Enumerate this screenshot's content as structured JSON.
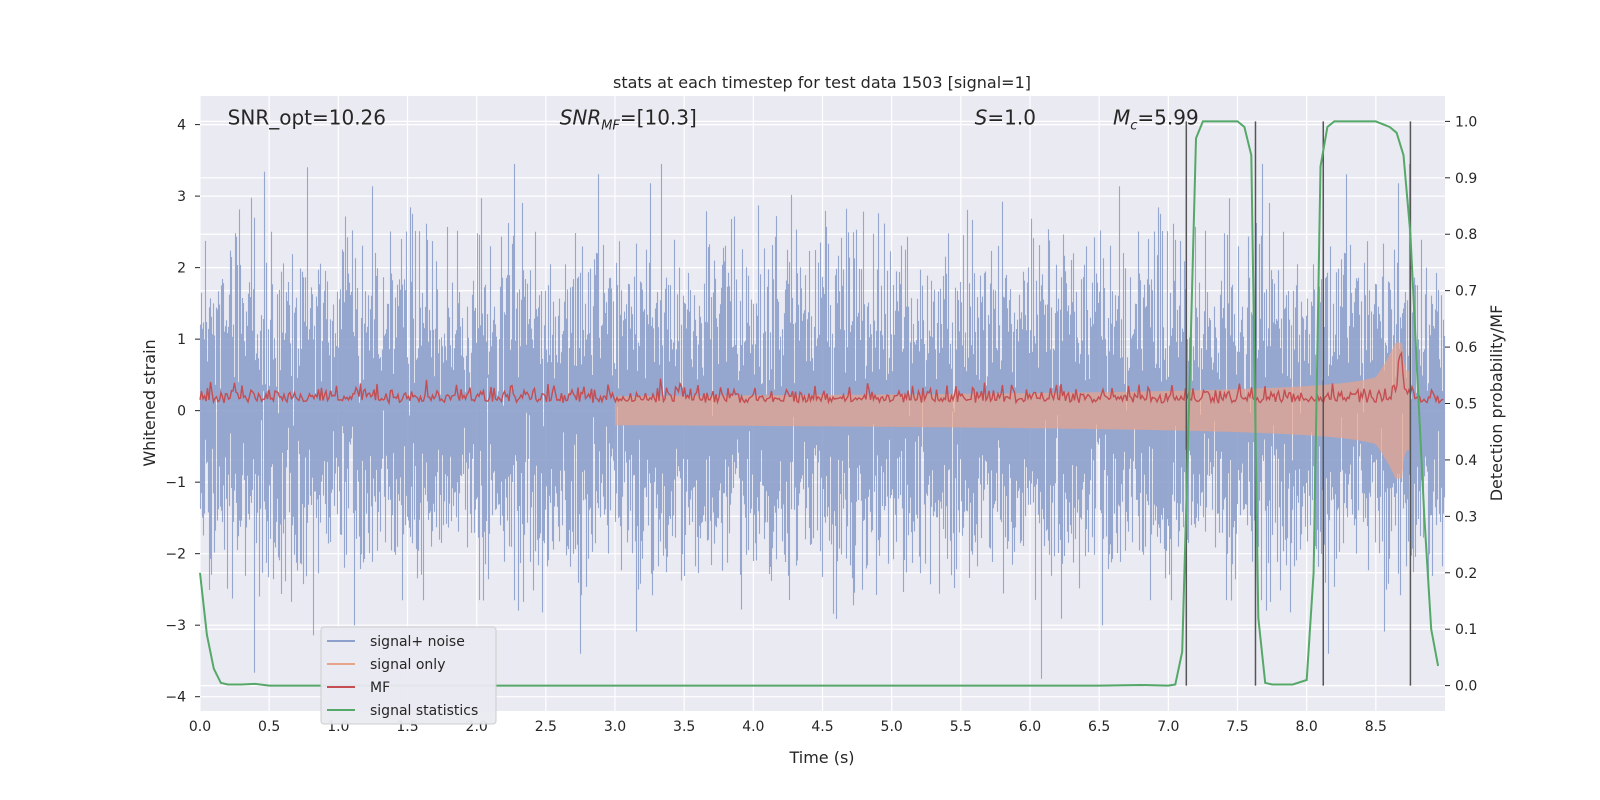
{
  "chart_data": {
    "type": "line",
    "title": "stats at each timestep for test data 1503 [signal=1]",
    "xlabel": "Time (s)",
    "ylabel": "Whitened strain",
    "y2label": "Detection probability/MF",
    "xlim": [
      0,
      9.0
    ],
    "ylim": [
      -4.2,
      4.4
    ],
    "y2lim": [
      -0.045,
      1.045
    ],
    "x_ticks": [
      "0.0",
      "0.5",
      "1.0",
      "1.5",
      "2.0",
      "2.5",
      "3.0",
      "3.5",
      "4.0",
      "4.5",
      "5.0",
      "5.5",
      "6.0",
      "6.5",
      "7.0",
      "7.5",
      "8.0",
      "8.5"
    ],
    "y_ticks": [
      "−4",
      "−3",
      "−2",
      "−1",
      "0",
      "1",
      "2",
      "3",
      "4"
    ],
    "y2_ticks": [
      "0.0",
      "0.1",
      "0.2",
      "0.3",
      "0.4",
      "0.5",
      "0.6",
      "0.7",
      "0.8",
      "0.9",
      "1.0"
    ],
    "grid": true,
    "legend_placement": "lower-left",
    "annotations": [
      {
        "text": "SNR_opt=10.26",
        "x": 0.2,
        "y": 4.1
      },
      {
        "text": "SNR",
        "sub": "MF",
        "suffix": "=[10.3]",
        "italic": true,
        "x": 2.6,
        "y": 4.1
      },
      {
        "text": "S",
        "suffix": "=1.0",
        "italic": true,
        "x": 5.6,
        "y": 4.1
      },
      {
        "text": "M",
        "sub": "c",
        "suffix": "=5.99",
        "italic": true,
        "x": 6.6,
        "y": 4.1
      }
    ],
    "vlines": [
      7.13,
      7.63,
      8.12,
      8.75
    ],
    "series": [
      {
        "name": "signal+ noise",
        "color": "#8da0cb",
        "kind": "noise",
        "axis": "left",
        "amplitude_sigma": 1.0
      },
      {
        "name": "signal only",
        "color": "#e8a48a",
        "kind": "chirp",
        "axis": "left",
        "t_merge": 8.68,
        "peak": 0.95
      },
      {
        "name": "MF",
        "color": "#c44e52",
        "kind": "mf",
        "axis": "right",
        "baseline": 0.5,
        "peak_x": 8.68,
        "peak_y": 0.61
      },
      {
        "name": "signal statistics",
        "color": "#55a868",
        "kind": "line",
        "axis": "right",
        "x": [
          0.0,
          0.05,
          0.1,
          0.15,
          0.2,
          0.3,
          0.4,
          0.5,
          1.0,
          2.0,
          3.0,
          4.0,
          5.0,
          6.0,
          6.5,
          6.8,
          7.0,
          7.05,
          7.1,
          7.15,
          7.2,
          7.25,
          7.3,
          7.35,
          7.4,
          7.5,
          7.55,
          7.6,
          7.65,
          7.7,
          7.75,
          7.8,
          7.9,
          8.0,
          8.05,
          8.1,
          8.15,
          8.2,
          8.25,
          8.3,
          8.4,
          8.5,
          8.6,
          8.65,
          8.7,
          8.75,
          8.8,
          8.85,
          8.9,
          8.95
        ],
        "y": [
          0.2,
          0.09,
          0.03,
          0.005,
          0.002,
          0.002,
          0.003,
          0.0,
          0.0,
          0.0,
          0.0,
          0.0,
          0.0,
          0.0,
          0.0,
          0.001,
          0.0,
          0.002,
          0.06,
          0.5,
          0.97,
          1.0,
          1.0,
          1.0,
          1.0,
          1.0,
          0.99,
          0.94,
          0.12,
          0.005,
          0.002,
          0.002,
          0.002,
          0.01,
          0.2,
          0.92,
          0.99,
          1.0,
          1.0,
          1.0,
          1.0,
          1.0,
          0.99,
          0.98,
          0.94,
          0.8,
          0.55,
          0.3,
          0.1,
          0.035
        ]
      }
    ]
  }
}
